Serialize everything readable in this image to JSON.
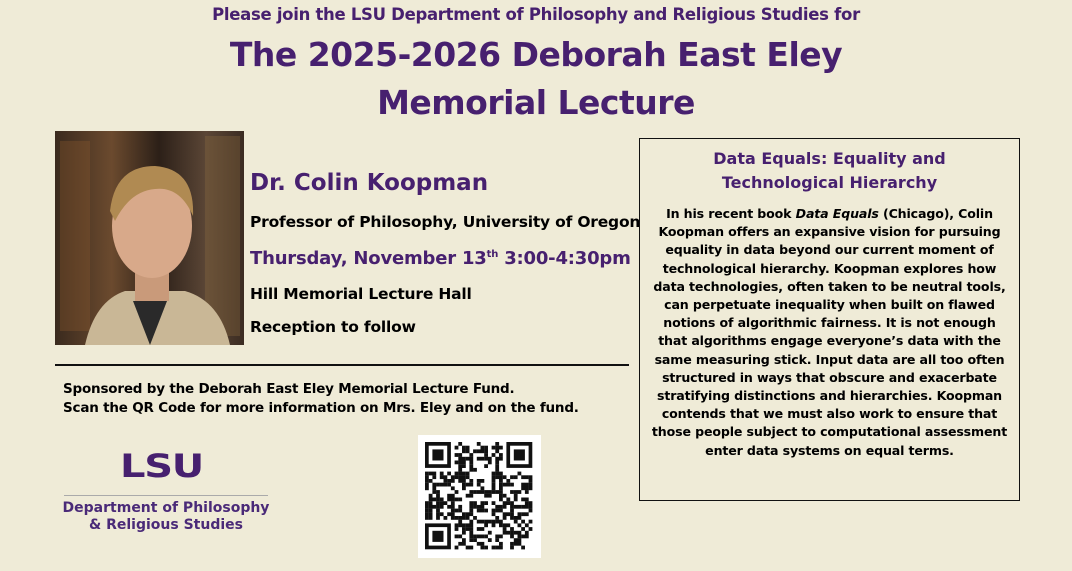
{
  "header": {
    "intro": "Please join the LSU Department of Philosophy and Religious Studies for",
    "title_line1": "The 2025-2026 Deborah East Eley",
    "title_line2": "Memorial Lecture"
  },
  "speaker": {
    "name": "Dr. Colin Koopman",
    "position": "Professor of Philosophy, University of Oregon",
    "date_prefix": "Thursday, November 13",
    "date_suffix": "th",
    "time": " 3:00-4:30pm",
    "location": "Hill Memorial Lecture Hall",
    "reception": "Reception to follow"
  },
  "sponsor": {
    "line1": "Sponsored by the Deborah East Eley Memorial Lecture Fund.",
    "line2": "Scan the QR Code for more information on Mrs. Eley and on the fund."
  },
  "logo": {
    "wordmark": "LSU",
    "dept_line1": "Department of Philosophy",
    "dept_line2": "& Religious Studies"
  },
  "abstract": {
    "title_line1": "Data Equals: Equality and",
    "title_line2": "Technological Hierarchy",
    "body_before": "In his recent book ",
    "book_title": "Data Equals",
    "body_after": " (Chicago), Colin Koopman offers an expansive vision for pursuing equality in data beyond our current moment of technological hierarchy.  Koopman explores how data technologies, often taken to be neutral tools, can perpetuate inequality when built on flawed notions of algorithmic fairness. It is not enough that algorithms engage everyone’s data with the same measuring stick. Input data are all too often structured in ways that obscure and exacerbate stratifying distinctions and hierarchies. Koopman contends that we must also work to ensure that those people subject to computational assessment enter data systems on equal terms."
  },
  "colors": {
    "background": "#efebd7",
    "accent_purple": "#47206f"
  }
}
